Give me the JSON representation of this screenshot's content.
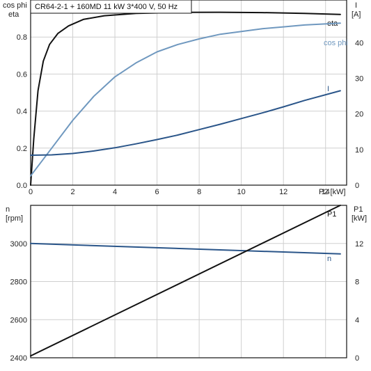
{
  "title": "CR64-2-1 + 160MD   11 kW   3*400 V, 50 Hz",
  "colors": {
    "eta": "#111111",
    "cos_phi": "#6f98bf",
    "current": "#2a5589",
    "speed": "#2a5589",
    "p1": "#111111",
    "grid": "#cfcfcf"
  },
  "chart_data": [
    {
      "type": "line",
      "grid": true,
      "x_label": "P2 [kW]",
      "xlim": [
        0,
        15
      ],
      "x_ticks": [
        "0",
        "2",
        "4",
        "6",
        "8",
        "10",
        "12",
        "14"
      ],
      "left_axis": {
        "label_line1": "cos phi",
        "label_line2": "eta",
        "ylim": [
          0,
          1.0
        ],
        "ticks": [
          "0.0",
          "0.2",
          "0.4",
          "0.6",
          "0.8"
        ]
      },
      "right_axis": {
        "label_line1": "I",
        "label_line2": "[A]",
        "ylim": [
          0,
          52
        ],
        "ticks": [
          "0",
          "10",
          "20",
          "30",
          "40"
        ]
      },
      "series": [
        {
          "name": "eta",
          "key": "eta",
          "axis": "left",
          "x": [
            0.0,
            0.15,
            0.35,
            0.6,
            0.9,
            1.3,
            1.8,
            2.5,
            3.5,
            5.0,
            7.0,
            9.0,
            11.0,
            13.0,
            14.7
          ],
          "y": [
            0.0,
            0.25,
            0.51,
            0.67,
            0.76,
            0.82,
            0.86,
            0.895,
            0.915,
            0.928,
            0.933,
            0.934,
            0.932,
            0.928,
            0.922
          ]
        },
        {
          "name": "cos phi",
          "key": "cos_phi",
          "axis": "left",
          "x": [
            0.0,
            1.0,
            2.0,
            3.0,
            4.0,
            5.0,
            6.0,
            7.0,
            8.0,
            9.0,
            10.0,
            11.0,
            12.0,
            13.0,
            14.7
          ],
          "y": [
            0.05,
            0.2,
            0.35,
            0.48,
            0.585,
            0.66,
            0.72,
            0.76,
            0.79,
            0.815,
            0.83,
            0.845,
            0.855,
            0.865,
            0.875
          ]
        },
        {
          "name": "I",
          "key": "current",
          "axis": "right",
          "x": [
            0.0,
            1.0,
            2.0,
            3.0,
            4.0,
            5.0,
            6.0,
            7.0,
            8.0,
            9.0,
            10.0,
            11.0,
            12.0,
            13.0,
            14.7
          ],
          "y": [
            8.4,
            8.5,
            8.9,
            9.6,
            10.5,
            11.6,
            12.8,
            14.1,
            15.6,
            17.1,
            18.7,
            20.3,
            22.0,
            23.8,
            26.5
          ]
        }
      ]
    },
    {
      "type": "line",
      "grid": true,
      "xlim": [
        0,
        15
      ],
      "left_axis": {
        "label_line1": "n",
        "label_line2": "[rpm]",
        "ylim": [
          2400,
          3200
        ],
        "ticks": [
          "2400",
          "2600",
          "2800",
          "3000"
        ]
      },
      "right_axis": {
        "label_line1": "P1",
        "label_line2": "[kW]",
        "ylim": [
          0,
          16
        ],
        "ticks": [
          "0",
          "4",
          "8",
          "12"
        ]
      },
      "series": [
        {
          "name": "n",
          "key": "speed",
          "axis": "left",
          "x": [
            0.0,
            14.7
          ],
          "y": [
            3000,
            2945
          ]
        },
        {
          "name": "P1",
          "key": "p1",
          "axis": "right",
          "x": [
            0.0,
            14.7
          ],
          "y": [
            0.2,
            16.0
          ]
        }
      ]
    }
  ]
}
